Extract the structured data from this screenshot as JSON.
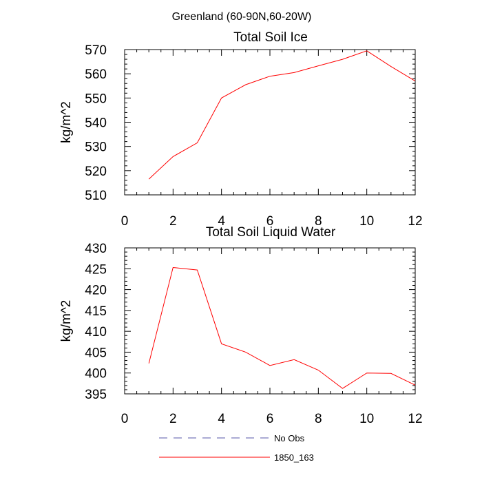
{
  "figure": {
    "title": "Greenland (60-90N,60-20W)"
  },
  "chart_data": [
    {
      "type": "line",
      "title": "Total Soil Ice",
      "xlabel": "",
      "ylabel": "kg/m^2",
      "xlim": [
        0,
        12
      ],
      "ylim": [
        510,
        570
      ],
      "xticks": [
        0,
        2,
        4,
        6,
        8,
        10,
        12
      ],
      "yticks": [
        510,
        520,
        530,
        540,
        550,
        560,
        570
      ],
      "series": [
        {
          "name": "1850_163",
          "color": "#ff0000",
          "x": [
            1,
            2,
            3,
            4,
            5,
            6,
            7,
            8,
            9,
            10,
            11,
            12
          ],
          "values": [
            516.5,
            525.8,
            531.5,
            550.0,
            555.5,
            559.0,
            560.5,
            563.3,
            566.0,
            569.5,
            563.0,
            557.0
          ]
        }
      ]
    },
    {
      "type": "line",
      "title": "Total Soil Liquid Water",
      "xlabel": "",
      "ylabel": "kg/m^2",
      "xlim": [
        0,
        12
      ],
      "ylim": [
        395,
        430
      ],
      "xticks": [
        0,
        2,
        4,
        6,
        8,
        10,
        12
      ],
      "yticks": [
        395,
        400,
        405,
        410,
        415,
        420,
        425,
        430
      ],
      "series": [
        {
          "name": "1850_163",
          "color": "#ff0000",
          "x": [
            1,
            2,
            3,
            4,
            5,
            6,
            7,
            8,
            9,
            10,
            11,
            12
          ],
          "values": [
            402.3,
            425.3,
            424.7,
            407.0,
            405.0,
            401.8,
            403.2,
            400.7,
            396.3,
            400.0,
            399.9,
            397.1
          ]
        }
      ]
    }
  ],
  "legend": {
    "placement": "bottom-center",
    "entries": [
      {
        "label": "No Obs",
        "color": "#5555aa",
        "style": "dashed"
      },
      {
        "label": "1850_163",
        "color": "#ff0000",
        "style": "solid"
      }
    ]
  }
}
